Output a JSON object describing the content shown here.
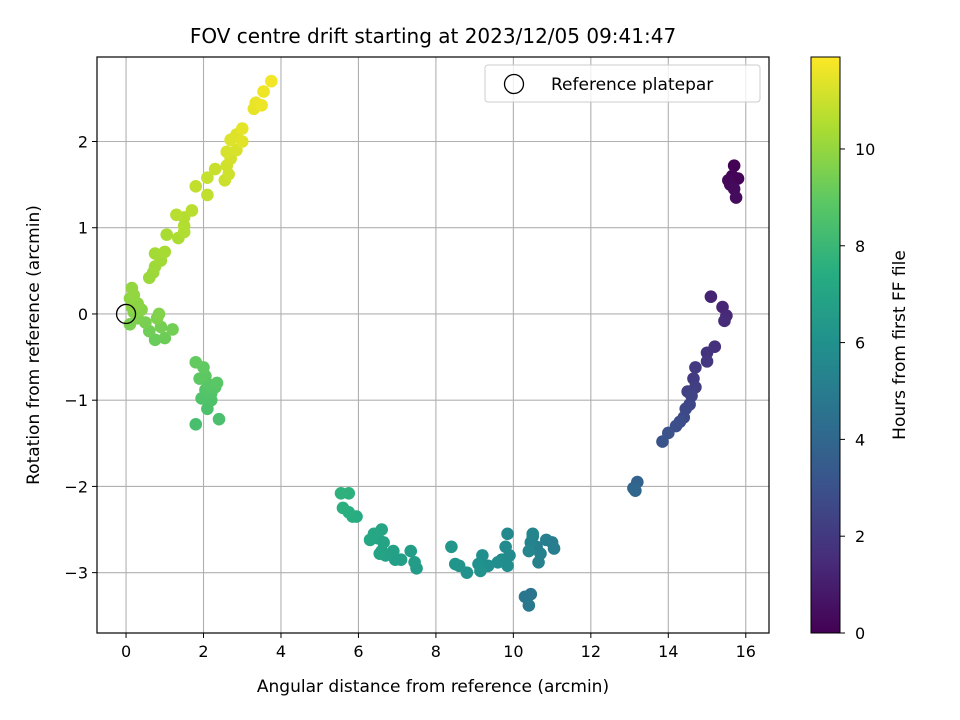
{
  "chart_data": {
    "type": "scatter",
    "title": "FOV centre drift starting at 2023/12/05 09:41:47",
    "xlabel": "Angular distance from reference (arcmin)",
    "ylabel": "Rotation from reference (arcmin)",
    "xlim": [
      -0.75,
      16.6
    ],
    "ylim": [
      -3.7,
      2.98
    ],
    "xticks": [
      0,
      2,
      4,
      6,
      8,
      10,
      12,
      14,
      16
    ],
    "yticks": [
      -3,
      -2,
      -1,
      0,
      1,
      2
    ],
    "grid": true,
    "legend": {
      "placement": "top-right",
      "entries": [
        "Reference platepar"
      ]
    },
    "reference_point": {
      "x": 0,
      "y": 0,
      "label": "Reference platepar"
    },
    "colorbar": {
      "label": "Hours from first FF file",
      "range": [
        0,
        11.9
      ],
      "ticks": [
        0,
        2,
        4,
        6,
        8,
        10
      ],
      "colormap": "viridis"
    },
    "points": [
      [
        15.7,
        1.72,
        0.05
      ],
      [
        15.65,
        1.6,
        0.1
      ],
      [
        15.8,
        1.57,
        0.15
      ],
      [
        15.55,
        1.55,
        0.2
      ],
      [
        15.6,
        1.5,
        0.25
      ],
      [
        15.7,
        1.45,
        0.3
      ],
      [
        15.75,
        1.35,
        0.35
      ],
      [
        15.1,
        0.2,
        1.2
      ],
      [
        15.4,
        0.08,
        1.3
      ],
      [
        15.5,
        -0.02,
        1.4
      ],
      [
        15.45,
        -0.08,
        1.5
      ],
      [
        15.2,
        -0.38,
        1.7
      ],
      [
        15.0,
        -0.45,
        1.8
      ],
      [
        15.0,
        -0.55,
        1.9
      ],
      [
        14.7,
        -0.62,
        2.0
      ],
      [
        14.65,
        -0.75,
        2.1
      ],
      [
        14.7,
        -0.85,
        2.2
      ],
      [
        14.5,
        -0.9,
        2.3
      ],
      [
        14.6,
        -0.95,
        2.4
      ],
      [
        14.55,
        -1.05,
        2.5
      ],
      [
        14.45,
        -1.1,
        2.6
      ],
      [
        14.4,
        -1.2,
        2.7
      ],
      [
        14.3,
        -1.25,
        2.8
      ],
      [
        14.2,
        -1.3,
        2.9
      ],
      [
        14.0,
        -1.38,
        3.0
      ],
      [
        13.85,
        -1.48,
        3.1
      ],
      [
        13.2,
        -1.95,
        3.8
      ],
      [
        13.1,
        -2.02,
        3.9
      ],
      [
        13.15,
        -2.05,
        4.0
      ],
      [
        10.45,
        -3.25,
        4.6
      ],
      [
        10.3,
        -3.28,
        4.7
      ],
      [
        10.4,
        -3.38,
        4.8
      ],
      [
        11.0,
        -2.65,
        5.0
      ],
      [
        11.05,
        -2.72,
        5.05
      ],
      [
        10.85,
        -2.62,
        5.1
      ],
      [
        10.6,
        -2.7,
        5.15
      ],
      [
        10.7,
        -2.78,
        5.2
      ],
      [
        10.65,
        -2.88,
        5.25
      ],
      [
        10.5,
        -2.58,
        5.3
      ],
      [
        10.45,
        -2.65,
        5.35
      ],
      [
        10.5,
        -2.55,
        5.4
      ],
      [
        10.4,
        -2.75,
        5.45
      ],
      [
        9.85,
        -2.55,
        5.6
      ],
      [
        9.8,
        -2.7,
        5.65
      ],
      [
        9.9,
        -2.8,
        5.7
      ],
      [
        9.7,
        -2.85,
        5.75
      ],
      [
        9.85,
        -2.92,
        5.8
      ],
      [
        9.6,
        -2.88,
        5.85
      ],
      [
        9.35,
        -2.92,
        5.9
      ],
      [
        9.2,
        -2.8,
        5.95
      ],
      [
        9.1,
        -2.9,
        6.0
      ],
      [
        9.15,
        -2.98,
        6.05
      ],
      [
        8.8,
        -3.0,
        6.1
      ],
      [
        8.6,
        -2.92,
        6.15
      ],
      [
        8.5,
        -2.9,
        6.2
      ],
      [
        8.4,
        -2.7,
        6.25
      ],
      [
        7.5,
        -2.95,
        6.5
      ],
      [
        7.45,
        -2.88,
        6.55
      ],
      [
        7.35,
        -2.75,
        6.6
      ],
      [
        7.1,
        -2.85,
        6.65
      ],
      [
        6.95,
        -2.85,
        6.7
      ],
      [
        6.9,
        -2.75,
        6.75
      ],
      [
        6.7,
        -2.8,
        6.8
      ],
      [
        6.6,
        -2.75,
        6.85
      ],
      [
        6.55,
        -2.78,
        6.9
      ],
      [
        6.65,
        -2.65,
        6.95
      ],
      [
        6.5,
        -2.6,
        7.0
      ],
      [
        6.6,
        -2.5,
        7.05
      ],
      [
        6.4,
        -2.55,
        7.1
      ],
      [
        6.3,
        -2.62,
        7.15
      ],
      [
        5.95,
        -2.35,
        7.4
      ],
      [
        5.85,
        -2.35,
        7.45
      ],
      [
        5.75,
        -2.3,
        7.5
      ],
      [
        5.6,
        -2.25,
        7.55
      ],
      [
        5.75,
        -2.08,
        7.6
      ],
      [
        5.55,
        -2.08,
        7.65
      ],
      [
        1.8,
        -1.28,
        8.4
      ],
      [
        2.4,
        -1.22,
        8.45
      ],
      [
        2.1,
        -1.1,
        8.5
      ],
      [
        2.2,
        -1.0,
        8.55
      ],
      [
        1.95,
        -0.98,
        8.6
      ],
      [
        2.2,
        -0.92,
        8.65
      ],
      [
        2.05,
        -0.88,
        8.7
      ],
      [
        2.3,
        -0.85,
        8.75
      ],
      [
        2.15,
        -0.82,
        8.8
      ],
      [
        2.35,
        -0.8,
        8.85
      ],
      [
        1.9,
        -0.75,
        8.9
      ],
      [
        2.05,
        -0.72,
        8.95
      ],
      [
        2.0,
        -0.62,
        9.0
      ],
      [
        1.8,
        -0.56,
        9.05
      ],
      [
        0.75,
        -0.3,
        9.2
      ],
      [
        1.0,
        -0.28,
        9.25
      ],
      [
        0.6,
        -0.2,
        9.3
      ],
      [
        1.2,
        -0.18,
        9.35
      ],
      [
        0.9,
        -0.15,
        9.4
      ],
      [
        0.5,
        -0.1,
        9.45
      ],
      [
        0.1,
        -0.12,
        9.5
      ],
      [
        0.3,
        -0.05,
        9.55
      ],
      [
        0.8,
        -0.05,
        9.6
      ],
      [
        0.85,
        0.0,
        9.65
      ],
      [
        0.2,
        0.02,
        9.7
      ],
      [
        0.4,
        0.05,
        9.75
      ],
      [
        0.15,
        0.08,
        9.8
      ],
      [
        0.3,
        0.12,
        9.85
      ],
      [
        0.1,
        0.18,
        9.9
      ],
      [
        0.2,
        0.22,
        9.95
      ],
      [
        0.15,
        0.3,
        10.0
      ],
      [
        0.6,
        0.42,
        10.1
      ],
      [
        0.7,
        0.48,
        10.15
      ],
      [
        0.75,
        0.55,
        10.2
      ],
      [
        0.9,
        0.62,
        10.25
      ],
      [
        0.75,
        0.7,
        10.3
      ],
      [
        1.0,
        0.72,
        10.35
      ],
      [
        1.05,
        0.92,
        10.4
      ],
      [
        1.35,
        0.88,
        10.45
      ],
      [
        1.5,
        0.95,
        10.5
      ],
      [
        1.5,
        1.02,
        10.55
      ],
      [
        1.5,
        1.12,
        10.6
      ],
      [
        1.3,
        1.15,
        10.65
      ],
      [
        1.7,
        1.2,
        10.7
      ],
      [
        2.1,
        1.38,
        10.8
      ],
      [
        1.8,
        1.48,
        10.85
      ],
      [
        2.1,
        1.58,
        10.9
      ],
      [
        2.3,
        1.68,
        10.95
      ],
      [
        2.55,
        1.55,
        11.0
      ],
      [
        2.65,
        1.62,
        11.05
      ],
      [
        2.6,
        1.72,
        11.1
      ],
      [
        2.7,
        1.8,
        11.15
      ],
      [
        2.6,
        1.88,
        11.2
      ],
      [
        2.85,
        1.9,
        11.25
      ],
      [
        2.7,
        2.02,
        11.3
      ],
      [
        2.85,
        2.08,
        11.35
      ],
      [
        3.0,
        2.0,
        11.4
      ],
      [
        3.0,
        2.15,
        11.45
      ],
      [
        3.3,
        2.38,
        11.5
      ],
      [
        3.35,
        2.45,
        11.55
      ],
      [
        3.5,
        2.42,
        11.6
      ],
      [
        3.55,
        2.58,
        11.65
      ],
      [
        3.75,
        2.7,
        11.7
      ]
    ]
  }
}
